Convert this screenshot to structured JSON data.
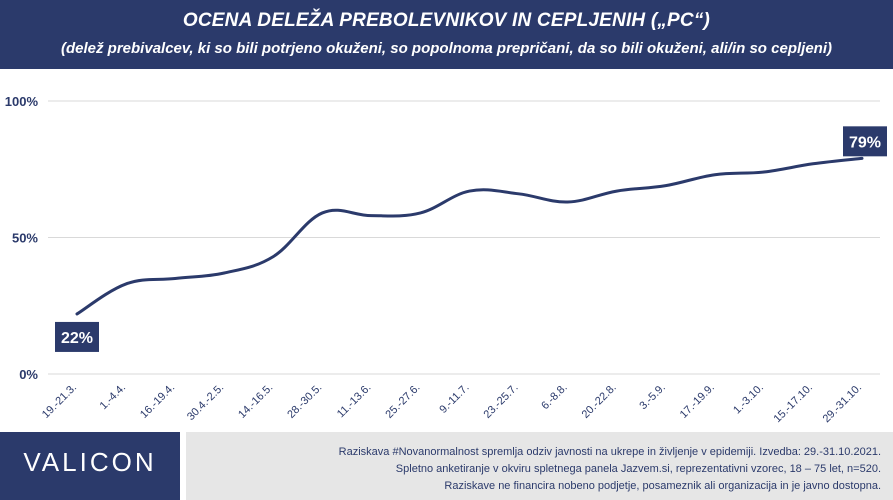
{
  "header": {
    "title": "OCENA DELEŽA PREBOLEVNIKOV IN CEPLJENIH („PC“)",
    "subtitle": "(delež prebivalcev, ki so bili potrjeno okuženi, so popolnoma prepričani, da so bili okuženi, ali/in so cepljeni)"
  },
  "chart_data": {
    "type": "line",
    "categories": [
      "19.-21.3.",
      "1.-4.4.",
      "16.-19.4.",
      "30.4.-2.5.",
      "14.-16.5.",
      "28.-30.5.",
      "11.-13.6.",
      "25.-27.6.",
      "9.-11.7.",
      "23.-25.7.",
      "6.-8.8.",
      "20.-22.8.",
      "3.-5.9.",
      "17.-19.9.",
      "1.-3.10.",
      "15.-17.10.",
      "29.-31.10."
    ],
    "values": [
      22,
      33,
      35,
      37,
      43,
      59,
      58,
      59,
      67,
      66,
      63,
      67,
      69,
      73,
      74,
      77,
      79
    ],
    "y_ticks": [
      0,
      50,
      100
    ],
    "y_tick_labels": [
      "0%",
      "50%",
      "100%"
    ],
    "ylim": [
      0,
      100
    ],
    "data_labels": [
      {
        "index": 0,
        "text": "22%"
      },
      {
        "index": 16,
        "text": "79%"
      }
    ],
    "grid": true,
    "line_color": "#2b3a6b",
    "label_bg_color": "#2b3a6b",
    "grid_color": "#d9d9d9"
  },
  "footer": {
    "logo": "VALICON",
    "line1": "Raziskava #Novanormalnost spremlja odziv javnosti na ukrepe in življenje v epidemiji. Izvedba: 29.-31.10.2021.",
    "line2": "Spletno anketiranje v okviru spletnega panela Jazvem.si, reprezentativni vzorec, 18 – 75 let, n=520.",
    "line3": "Raziskave ne financira nobeno podjetje, posameznik ali organizacija in je javno dostopna."
  }
}
